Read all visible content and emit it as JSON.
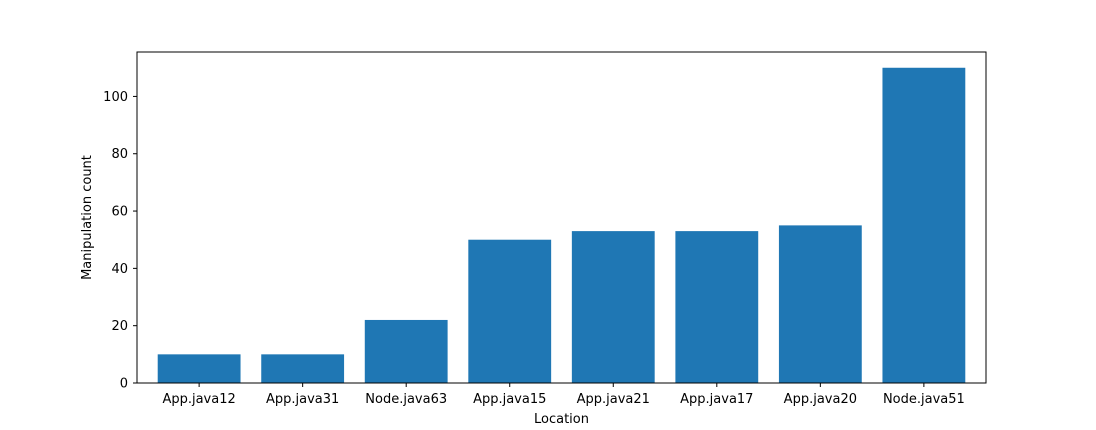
{
  "chart_data": {
    "type": "bar",
    "title": "",
    "xlabel": "Location",
    "ylabel": "Manipulation count",
    "categories": [
      "App.java12",
      "App.java31",
      "Node.java63",
      "App.java15",
      "App.java21",
      "App.java17",
      "App.java20",
      "Node.java51"
    ],
    "values": [
      10,
      10,
      22,
      50,
      53,
      53,
      55,
      110
    ],
    "ylim": [
      0,
      115.5
    ],
    "yticks": [
      0,
      20,
      40,
      60,
      80,
      100
    ],
    "grid": false,
    "legend": "none",
    "bar_color": "#1f77b4"
  }
}
